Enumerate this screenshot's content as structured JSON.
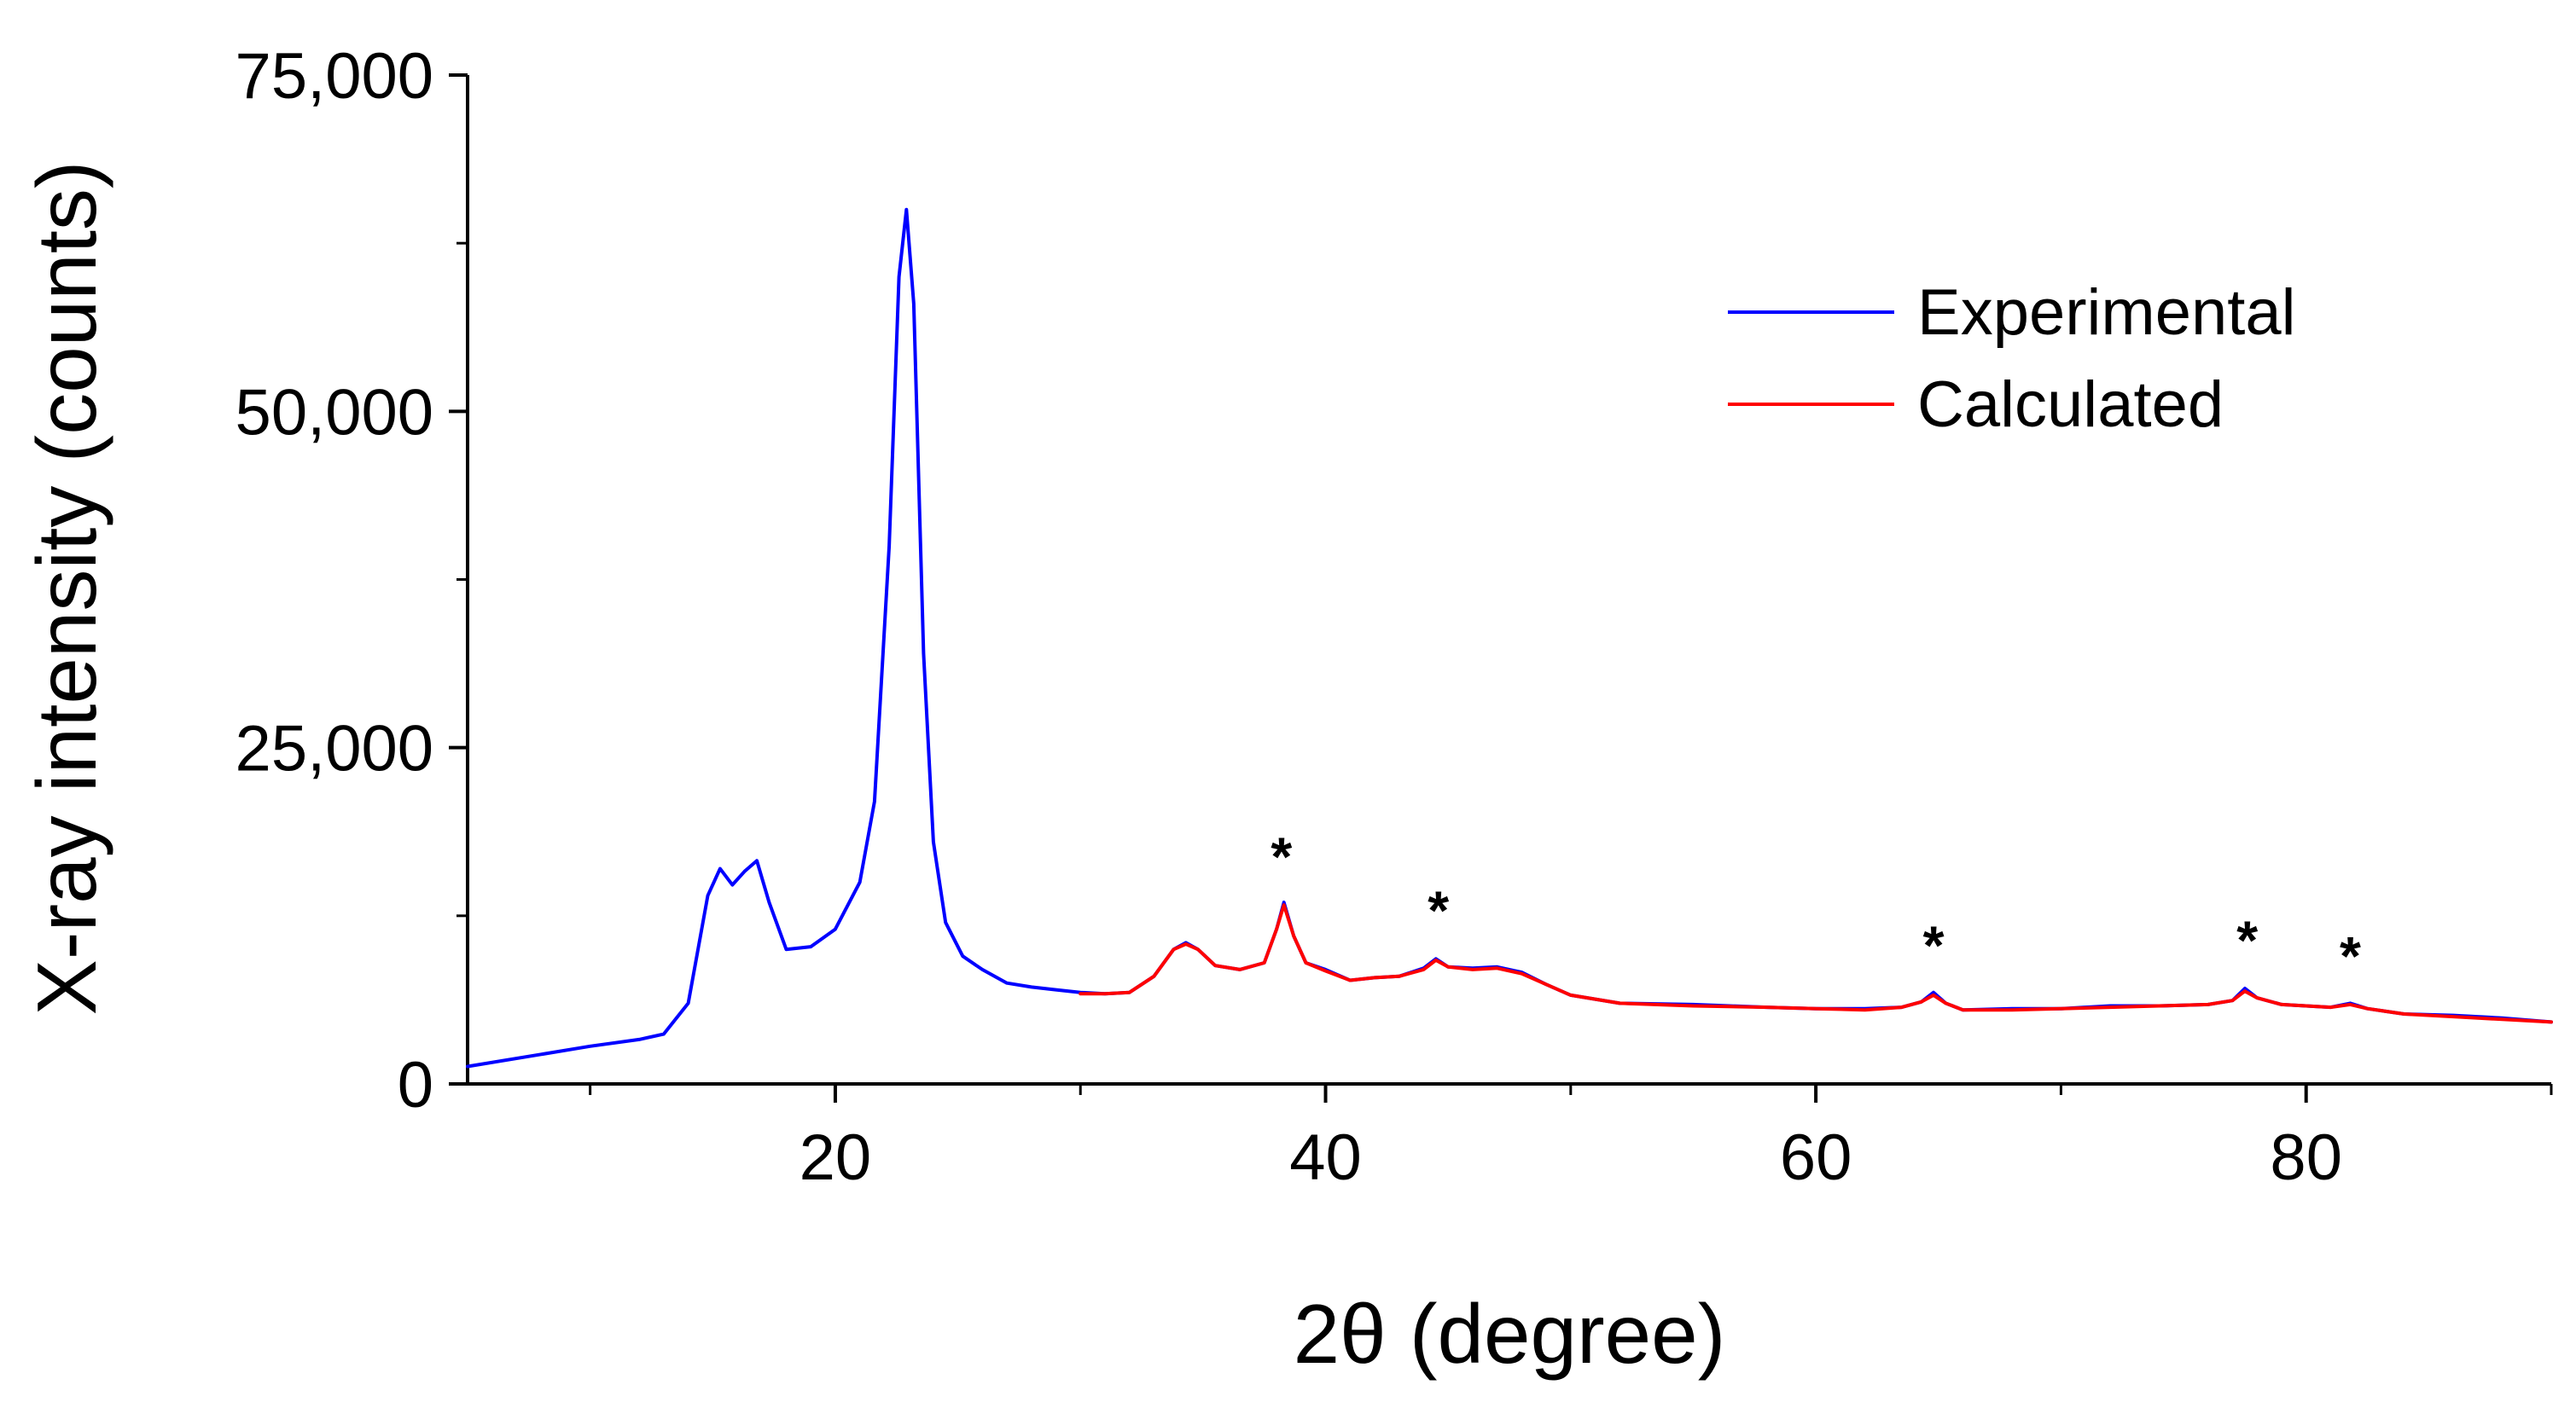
{
  "chart_data": {
    "type": "line",
    "title": "",
    "xlabel": "2θ (degree)",
    "ylabel": "X-ray intensity (counts)",
    "xlim": [
      5,
      90
    ],
    "ylim": [
      0,
      75000
    ],
    "x_major_ticks": [
      20,
      40,
      60,
      80
    ],
    "x_minor_ticks": [
      10,
      30,
      50,
      70,
      90
    ],
    "x_tick_labels": [
      "20",
      "40",
      "60",
      "80"
    ],
    "y_major_ticks": [
      0,
      25000,
      50000,
      75000
    ],
    "y_minor_ticks": [
      12500,
      37500,
      62500
    ],
    "y_tick_labels": [
      "0",
      "25,000",
      "50,000",
      "75,000"
    ],
    "legend": {
      "placement": "top-right",
      "entries": [
        {
          "label": "Experimental",
          "color": "#0000ff"
        },
        {
          "label": "Calculated",
          "color": "#ff0000"
        }
      ]
    },
    "series": [
      {
        "name": "Experimental",
        "color": "#0000ff",
        "x": [
          5,
          8,
          10,
          12,
          13,
          14,
          14.8,
          15.3,
          15.8,
          16.3,
          16.8,
          17.3,
          18,
          19,
          20,
          21,
          21.6,
          22.2,
          22.6,
          22.9,
          23.2,
          23.6,
          24,
          24.5,
          25.2,
          26,
          27,
          28,
          29,
          30,
          31,
          32,
          33,
          33.8,
          34.3,
          34.8,
          35.5,
          36.5,
          37.5,
          38,
          38.3,
          38.7,
          39.2,
          40,
          41,
          42,
          43,
          44,
          44.5,
          45,
          46,
          47,
          48,
          49,
          50,
          52,
          55,
          58,
          60,
          62,
          63.5,
          64.3,
          64.8,
          65.3,
          66,
          68,
          70,
          72,
          74,
          76,
          77,
          77.5,
          78,
          79,
          80,
          81,
          81.8,
          82.5,
          84,
          86,
          88,
          90
        ],
        "y": [
          1300,
          2200,
          2800,
          3300,
          3700,
          6000,
          14000,
          16000,
          14800,
          15800,
          16600,
          13500,
          10000,
          10200,
          11500,
          15000,
          21000,
          40000,
          60000,
          65000,
          58000,
          32000,
          18000,
          12000,
          9500,
          8500,
          7500,
          7200,
          7000,
          6800,
          6700,
          6800,
          8000,
          10000,
          10500,
          10000,
          8800,
          8500,
          9000,
          11500,
          13500,
          11000,
          9000,
          8500,
          7700,
          7900,
          8000,
          8600,
          9300,
          8700,
          8600,
          8700,
          8300,
          7400,
          6600,
          6000,
          5900,
          5700,
          5600,
          5600,
          5700,
          6100,
          6800,
          6000,
          5500,
          5600,
          5600,
          5800,
          5800,
          5900,
          6200,
          7100,
          6400,
          5900,
          5800,
          5700,
          6000,
          5600,
          5200,
          5100,
          4900,
          4600
        ]
      },
      {
        "name": "Calculated",
        "color": "#ff0000",
        "x": [
          30,
          31,
          32,
          33,
          33.8,
          34.3,
          34.8,
          35.5,
          36.5,
          37.5,
          38,
          38.3,
          38.7,
          39.2,
          40,
          41,
          42,
          43,
          44,
          44.5,
          45,
          46,
          47,
          48,
          49,
          50,
          52,
          55,
          58,
          60,
          62,
          63.5,
          64.3,
          64.8,
          65.3,
          66,
          68,
          70,
          72,
          74,
          76,
          77,
          77.5,
          78,
          79,
          80,
          81,
          81.8,
          82.5,
          84,
          86,
          88,
          90
        ],
        "y": [
          6700,
          6700,
          6800,
          8000,
          10000,
          10400,
          10000,
          8800,
          8500,
          9000,
          11500,
          13300,
          11000,
          9000,
          8400,
          7700,
          7900,
          8000,
          8500,
          9200,
          8700,
          8500,
          8600,
          8200,
          7400,
          6600,
          6000,
          5800,
          5700,
          5600,
          5500,
          5700,
          6100,
          6600,
          6000,
          5500,
          5500,
          5600,
          5700,
          5800,
          5900,
          6200,
          6900,
          6400,
          5900,
          5800,
          5700,
          5900,
          5600,
          5200,
          5000,
          4800,
          4600
        ]
      }
    ],
    "annotations": [
      {
        "text": "*",
        "x": 38.2,
        "y": 13600
      },
      {
        "text": "*",
        "x": 44.6,
        "y": 9600
      },
      {
        "text": "*",
        "x": 64.8,
        "y": 7000
      },
      {
        "text": "*",
        "x": 77.6,
        "y": 7400
      },
      {
        "text": "*",
        "x": 81.8,
        "y": 6200
      }
    ]
  }
}
